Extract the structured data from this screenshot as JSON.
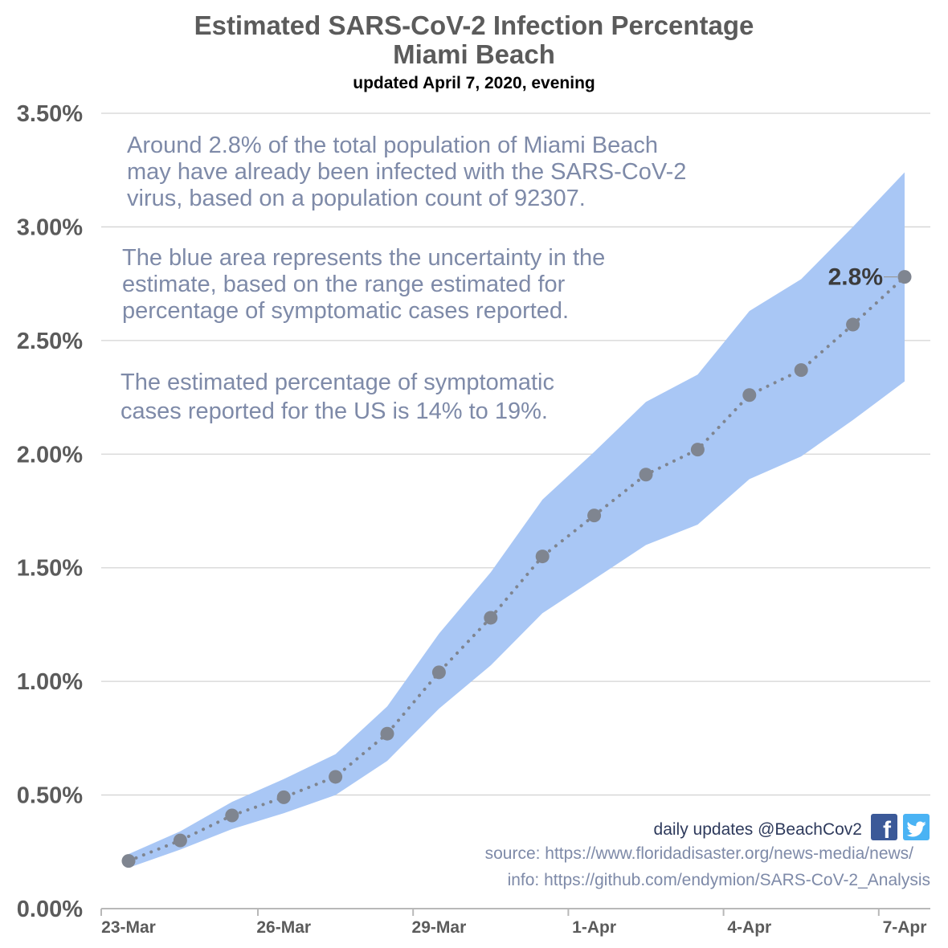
{
  "title_line1": "Estimated SARS-CoV-2 Infection Percentage",
  "title_line2": "Miami Beach",
  "subtitle": "updated April 7, 2020, evening",
  "notes": [
    [
      "Around 2.8% of the total population of Miami Beach",
      "may have already been infected with the SARS-CoV-2",
      "virus, based on a population count of 92307."
    ],
    [
      "The blue area represents the uncertainty in the",
      "estimate, based on the range estimated for",
      "percentage of symptomatic cases reported."
    ],
    [
      "The estimated percentage of symptomatic",
      "cases reported for the US is 14% to 19%."
    ]
  ],
  "credits": {
    "daily": "daily updates @BeachCov2",
    "source": "source: https://www.floridadisaster.org/news-media/news/",
    "info": "info: https://github.com/endymion/SARS-CoV-2_Analysis"
  },
  "icons": {
    "facebook": "facebook-icon",
    "twitter": "twitter-icon"
  },
  "colors": {
    "band": "#a9c7f5",
    "marker": "#7f8590",
    "grid": "#d4d4d4",
    "title": "#5b5b5b",
    "note": "#7e8aa8",
    "facebook": "#3b5998",
    "twitter": "#4ab3f4"
  },
  "chart_data": {
    "type": "line",
    "x": [
      "23-Mar",
      "24-Mar",
      "25-Mar",
      "26-Mar",
      "27-Mar",
      "28-Mar",
      "29-Mar",
      "30-Mar",
      "31-Mar",
      "1-Apr",
      "2-Apr",
      "3-Apr",
      "4-Apr",
      "5-Apr",
      "6-Apr",
      "7-Apr"
    ],
    "x_tick_labels": [
      "23-Mar",
      "26-Mar",
      "29-Mar",
      "1-Apr",
      "4-Apr",
      "7-Apr"
    ],
    "y_tick_labels": [
      "0.00%",
      "0.50%",
      "1.00%",
      "1.50%",
      "2.00%",
      "2.50%",
      "3.00%",
      "3.50%"
    ],
    "ylim": [
      0,
      3.5
    ],
    "y_unit": "%",
    "series": [
      {
        "values": [
          0.21,
          0.3,
          0.41,
          0.49,
          0.58,
          0.77,
          1.04,
          1.28,
          1.55,
          1.73,
          1.91,
          2.02,
          2.26,
          2.37,
          2.57,
          2.78
        ]
      }
    ],
    "band_upper": [
      0.24,
      0.34,
      0.47,
      0.57,
      0.68,
      0.89,
      1.21,
      1.48,
      1.8,
      2.01,
      2.23,
      2.35,
      2.63,
      2.77,
      3.0,
      3.24
    ],
    "band_lower": [
      0.18,
      0.26,
      0.35,
      0.42,
      0.5,
      0.65,
      0.88,
      1.07,
      1.3,
      1.45,
      1.6,
      1.69,
      1.89,
      1.99,
      2.15,
      2.32
    ],
    "last_value_label": "2.8%",
    "grid": true
  }
}
